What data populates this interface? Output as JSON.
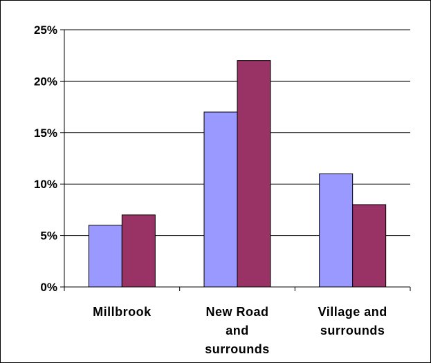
{
  "chart_data": {
    "type": "bar",
    "categories": [
      [
        "Millbrook"
      ],
      [
        "New Road",
        "and",
        "surrounds"
      ],
      [
        "Village and",
        "surrounds"
      ]
    ],
    "series": [
      {
        "values": [
          6,
          17,
          11
        ],
        "color": "#9999ff"
      },
      {
        "values": [
          7,
          22,
          8
        ],
        "color": "#993366"
      }
    ],
    "ylim": [
      0,
      25
    ],
    "yticks": [
      "0%",
      "5%",
      "10%",
      "15%",
      "20%",
      "25%"
    ],
    "ytick_values": [
      0,
      5,
      10,
      15,
      20,
      25
    ],
    "grid": true,
    "legend": "none"
  }
}
